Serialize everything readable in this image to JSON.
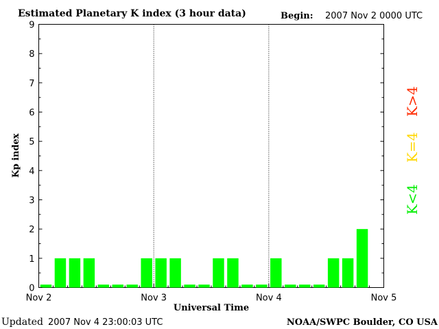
{
  "header": {
    "title": "Estimated Planetary K index (3 hour data)",
    "begin_label": "Begin:",
    "begin_value": "2007 Nov 2 0000 UTC"
  },
  "footer": {
    "updated_label": "Updated",
    "updated_value": "2007 Nov  4 23:00:03 UTC",
    "source": "NOAA/SWPC Boulder, CO USA"
  },
  "legend": [
    {
      "label": "K>4",
      "color": "#ff2a00"
    },
    {
      "label": "K=4",
      "color": "#ffd700"
    },
    {
      "label": "K<4",
      "color": "#00ee00"
    }
  ],
  "chart_data": {
    "type": "bar",
    "title": "Estimated Planetary K index (3 hour data)",
    "xlabel": "Universal Time",
    "ylabel": "Kp index",
    "ylim": [
      0,
      9
    ],
    "yticks": [
      "0",
      "1",
      "2",
      "3",
      "4",
      "5",
      "6",
      "7",
      "8",
      "9"
    ],
    "xticks": [
      "Nov 2",
      "Nov 3",
      "Nov 4",
      "Nov 5"
    ],
    "day_dividers": true,
    "bar_color": "#00ff00",
    "values": [
      0.1,
      1,
      1,
      1,
      0.1,
      0.1,
      0.1,
      1,
      1,
      1,
      0.1,
      0.1,
      1,
      1,
      0.1,
      0.1,
      1,
      0.1,
      0.1,
      0.1,
      1,
      1,
      2
    ]
  }
}
